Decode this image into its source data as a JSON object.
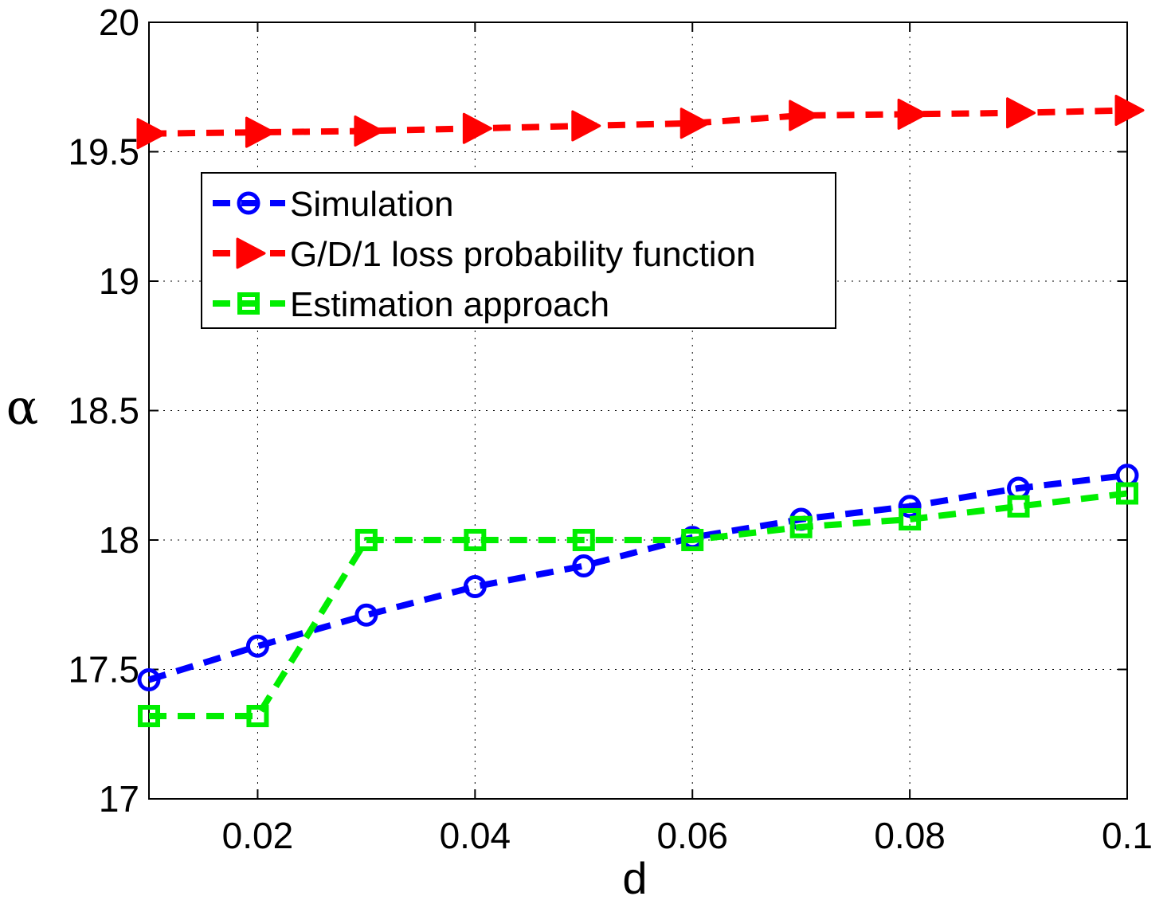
{
  "chart_data": {
    "type": "line",
    "title": "",
    "xlabel": "d",
    "ylabel": "α",
    "xlim": [
      0.01,
      0.1
    ],
    "ylim": [
      17,
      20
    ],
    "grid": true,
    "legend_position": "top-left",
    "x": [
      0.01,
      0.02,
      0.03,
      0.04,
      0.05,
      0.06,
      0.07,
      0.08,
      0.09,
      0.1
    ],
    "x_ticks": [
      0.02,
      0.04,
      0.06,
      0.08,
      0.1
    ],
    "x_tick_labels": [
      "0.02",
      "0.04",
      "0.06",
      "0.08",
      "0.1"
    ],
    "y_ticks": [
      17,
      17.5,
      18,
      18.5,
      19,
      19.5,
      20
    ],
    "y_tick_labels": [
      "17",
      "17.5",
      "18",
      "18.5",
      "19",
      "19.5",
      "20"
    ],
    "series": [
      {
        "name": "Simulation",
        "color": "#0000ff",
        "marker": "circle",
        "values": [
          17.46,
          17.59,
          17.71,
          17.82,
          17.9,
          18.01,
          18.08,
          18.13,
          18.2,
          18.25
        ]
      },
      {
        "name": "G/D/1 loss probability function",
        "color": "#ff0000",
        "marker": "triangle-right",
        "values": [
          19.57,
          19.575,
          19.58,
          19.59,
          19.6,
          19.61,
          19.64,
          19.645,
          19.65,
          19.66
        ]
      },
      {
        "name": "Estimation approach",
        "color": "#00ee00",
        "marker": "square",
        "values": [
          17.32,
          17.32,
          18.0,
          18.0,
          18.0,
          18.0,
          18.05,
          18.08,
          18.13,
          18.18
        ]
      }
    ]
  }
}
